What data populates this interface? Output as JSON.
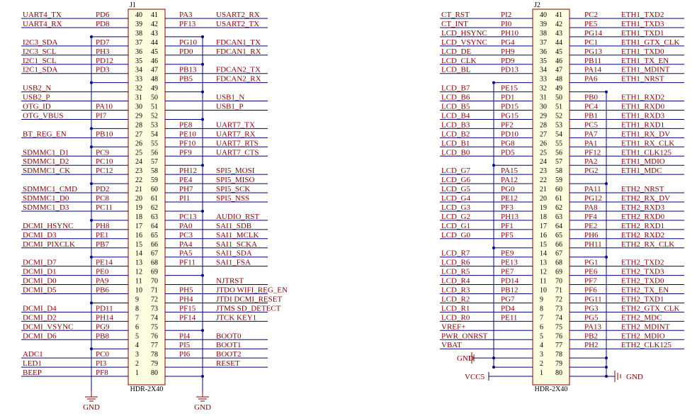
{
  "j1": {
    "ref": "J1",
    "value": "HDR-2X40",
    "left": [
      [
        "UART4_TX",
        "PD6",
        40
      ],
      [
        "UART4_RX",
        "PD8",
        39
      ],
      [
        "",
        null,
        38
      ],
      [
        "I2C3_SDA",
        "PD7",
        37
      ],
      [
        "I2C3_SCL",
        "PH3",
        36
      ],
      [
        "I2C1_SCL",
        "PD12",
        35
      ],
      [
        "I2C1_SDA",
        "PD3",
        34
      ],
      [
        "",
        null,
        33
      ],
      [
        "USB2_N",
        "",
        32
      ],
      [
        "USB2_P",
        "",
        31
      ],
      [
        "OTG_ID",
        "PA10",
        30
      ],
      [
        "OTG_VBUS",
        "PI7",
        29
      ],
      [
        "",
        null,
        28
      ],
      [
        "BT_REG_EN",
        "PB10",
        27
      ],
      [
        "",
        null,
        26
      ],
      [
        "SDMMC1_D1",
        "PC9",
        25
      ],
      [
        "SDMMC1_D2",
        "PC10",
        24
      ],
      [
        "SDMMC1_CK",
        "PC12",
        23
      ],
      [
        "",
        null,
        22
      ],
      [
        "SDMMC1_CMD",
        "PD2",
        21
      ],
      [
        "SDMMC1_D0",
        "PC8",
        20
      ],
      [
        "SDMMC1_D3",
        "PC11",
        19
      ],
      [
        "",
        null,
        18
      ],
      [
        "DCMI_HSYNC",
        "PH8",
        17
      ],
      [
        "DCMI_D3",
        "PE1",
        16
      ],
      [
        "DCMI_PIXCLK",
        "PB7",
        15
      ],
      [
        "",
        null,
        14
      ],
      [
        "DCMI_D7",
        "PE14",
        13
      ],
      [
        "DCMI_D1",
        "PE0",
        12
      ],
      [
        "DCMI_D0",
        "PA9",
        11
      ],
      [
        "DCMI_D5",
        "PB6",
        10
      ],
      [
        "",
        null,
        9
      ],
      [
        "DCMI_D4",
        "PD11",
        8
      ],
      [
        "DCMI_D2",
        "PH14",
        7
      ],
      [
        "DCMI_VSYNC",
        "PG9",
        6
      ],
      [
        "DCMI_D6",
        "PB8",
        5
      ],
      [
        "",
        null,
        4
      ],
      [
        "ADC1",
        "PC0",
        3
      ],
      [
        "LED1",
        "PI3",
        2
      ],
      [
        "BEEP",
        "PF8",
        1
      ]
    ],
    "right": [
      [
        41,
        "PA3",
        "USART2_RX"
      ],
      [
        42,
        "PF13",
        "USART2_TX"
      ],
      [
        43,
        null,
        ""
      ],
      [
        44,
        "PG10",
        "FDCAN1_TX"
      ],
      [
        45,
        "PD0",
        "FDCAN1_RX"
      ],
      [
        46,
        null,
        ""
      ],
      [
        47,
        "PB13",
        "FDCAN2_TX"
      ],
      [
        48,
        "PB5",
        "FDCAN2_RX"
      ],
      [
        49,
        null,
        ""
      ],
      [
        50,
        "",
        "USB1_N"
      ],
      [
        51,
        "",
        "USB1_P"
      ],
      [
        52,
        null,
        ""
      ],
      [
        53,
        "PE8",
        "UART7_TX"
      ],
      [
        54,
        "PE10",
        "UART7_RX"
      ],
      [
        55,
        "PF10",
        "UART7_RTS"
      ],
      [
        56,
        "PF9",
        "UART7_CTS"
      ],
      [
        57,
        null,
        ""
      ],
      [
        58,
        "PH12",
        "SPI5_MOSI"
      ],
      [
        59,
        "PE4",
        "SPI5_MISO"
      ],
      [
        60,
        "PH7",
        "SPI5_SCK"
      ],
      [
        61,
        "PI1",
        "SPI5_NSS"
      ],
      [
        62,
        null,
        ""
      ],
      [
        63,
        "PC13",
        "AUDIO_RST"
      ],
      [
        64,
        "PA0",
        "SAI1_SDB"
      ],
      [
        65,
        "PC3",
        "SAI1_MCLK"
      ],
      [
        66,
        "PA4",
        "SAI1_SCKA"
      ],
      [
        67,
        "PA5",
        "SAI1_SDA"
      ],
      [
        68,
        "PF11",
        "SAI1_FSA"
      ],
      [
        69,
        null,
        ""
      ],
      [
        70,
        "",
        "NJTRST"
      ],
      [
        71,
        "PH5",
        "JTDO  WIFI_REG_EN"
      ],
      [
        72,
        "PH4",
        "JTDI   DCMI_RESET"
      ],
      [
        73,
        "PF15",
        "JTMS   SD_DETECT"
      ],
      [
        74,
        "PF14",
        "JTCK   KEY1"
      ],
      [
        75,
        null,
        ""
      ],
      [
        76,
        "PI4",
        "BOOT0"
      ],
      [
        77,
        "PI5",
        "BOOT1"
      ],
      [
        78,
        "PI6",
        "BOOT2"
      ],
      [
        79,
        "",
        "RESET"
      ],
      [
        80,
        null,
        ""
      ]
    ],
    "gnd_labels": [
      "GND",
      "GND"
    ]
  },
  "j2": {
    "ref": "J2",
    "value": "HDR-2X40",
    "left": [
      [
        "CT_RST",
        "PI2",
        40
      ],
      [
        "CT_INT",
        "PI0",
        39
      ],
      [
        "LCD_HSYNC",
        "PH10",
        38
      ],
      [
        "LCD_VSYNC",
        "PG4",
        37
      ],
      [
        "LCD_DE",
        "PH9",
        36
      ],
      [
        "LCD_CLK",
        "PD9",
        35
      ],
      [
        "LCD_BL",
        "PD13",
        34
      ],
      [
        "",
        null,
        33
      ],
      [
        "LCD_B7",
        "PE15",
        32
      ],
      [
        "LCD_B6",
        "PD1",
        31
      ],
      [
        "LCD_B5",
        "PD15",
        30
      ],
      [
        "LCD_B4",
        "PG15",
        29
      ],
      [
        "LCD_B3",
        "PF2",
        28
      ],
      [
        "LCD_B2",
        "PD10",
        27
      ],
      [
        "LCD_B1",
        "PG8",
        26
      ],
      [
        "LCD_B0",
        "PD5",
        25
      ],
      [
        "",
        null,
        24
      ],
      [
        "LCD_G7",
        "PA15",
        23
      ],
      [
        "LCD_G6",
        "PA12",
        22
      ],
      [
        "LCD_G5",
        "PG0",
        21
      ],
      [
        "LCD_G4",
        "PE12",
        20
      ],
      [
        "LCD_G3",
        "PF3",
        19
      ],
      [
        "LCD_G2",
        "PH13",
        18
      ],
      [
        "LCD_G1",
        "PF1",
        17
      ],
      [
        "LCD_G0",
        "PF5",
        16
      ],
      [
        "",
        null,
        15
      ],
      [
        "LCD_R7",
        "PE9",
        14
      ],
      [
        "LCD_R6",
        "PE13",
        13
      ],
      [
        "LCD_R5",
        "PE7",
        12
      ],
      [
        "LCD_R4",
        "PD14",
        11
      ],
      [
        "LCD_R3",
        "PB12",
        10
      ],
      [
        "LCD_R2",
        "PG7",
        9
      ],
      [
        "LCD_R1",
        "PD4",
        8
      ],
      [
        "LCD_R0",
        "PE11",
        7
      ],
      [
        "VREF+",
        "",
        6
      ],
      [
        "PWR_ONRST",
        "",
        5
      ],
      [
        "VBAT",
        "",
        4
      ],
      [
        "",
        null,
        3
      ],
      [
        "",
        null,
        2
      ],
      [
        "",
        null,
        1
      ]
    ],
    "right": [
      [
        41,
        "PC2",
        "ETH1_TXD2"
      ],
      [
        42,
        "PE5",
        "ETH1_TXD3"
      ],
      [
        43,
        "PG14",
        "ETH1_TXD1"
      ],
      [
        44,
        "PC1",
        "ETH1_GTX_CLK"
      ],
      [
        45,
        "PG13",
        "ETH1_TXD0"
      ],
      [
        46,
        "PB11",
        "ETH1_TX_EN"
      ],
      [
        47,
        "PA14",
        "ETH1_MDINT"
      ],
      [
        48,
        "PA6",
        "ETH1_NRST"
      ],
      [
        49,
        null,
        ""
      ],
      [
        50,
        "PB0",
        "ETH1_RXD2"
      ],
      [
        51,
        "PC4",
        "ETH1_RXD0"
      ],
      [
        52,
        "PB1",
        "ETH1_RXD3"
      ],
      [
        53,
        "PC5",
        "ETH1_RXD1"
      ],
      [
        54,
        "PA7",
        "ETH1_RX_DV"
      ],
      [
        55,
        "PA1",
        "ETH1_RX_CLK"
      ],
      [
        56,
        "PF12",
        "ETH1_CLK125"
      ],
      [
        57,
        "PA2",
        "ETH1_MDIO"
      ],
      [
        58,
        "PG2",
        "ETH1_MDC"
      ],
      [
        59,
        null,
        ""
      ],
      [
        60,
        "PA11",
        "ETH2_NRST"
      ],
      [
        61,
        "PG12",
        "ETH2_RX_DV"
      ],
      [
        62,
        "PA8",
        "ETH2_RXD3"
      ],
      [
        63,
        "PF4",
        "ETH2_RXD0"
      ],
      [
        64,
        "PE2",
        "ETH2_RXD1"
      ],
      [
        65,
        "PH6",
        "ETH2_RXD2"
      ],
      [
        66,
        "PH11",
        "ETH2_RX_CLK"
      ],
      [
        67,
        null,
        ""
      ],
      [
        68,
        "PG1",
        "ETH2_TXD2"
      ],
      [
        69,
        "PE6",
        "ETH2_TXD3"
      ],
      [
        70,
        "PF7",
        "ETH2_TXD0"
      ],
      [
        71,
        "PF6",
        "ETH2_TX_EN"
      ],
      [
        72,
        "PG11",
        "ETH2_TXD1"
      ],
      [
        73,
        "PG3",
        "ETH2_GTX_CLK"
      ],
      [
        74,
        "PG5",
        "ETH2_MDC"
      ],
      [
        75,
        "PA13",
        "ETH2_MDINT"
      ],
      [
        76,
        "PB2",
        "ETH2_MDIO"
      ],
      [
        77,
        "PH2",
        "ETH2_CLK125"
      ],
      [
        78,
        null,
        ""
      ],
      [
        79,
        null,
        ""
      ],
      [
        80,
        null,
        ""
      ]
    ],
    "gnd_left": "GND",
    "gnd_right": "GND",
    "vcc": "VCC5"
  }
}
